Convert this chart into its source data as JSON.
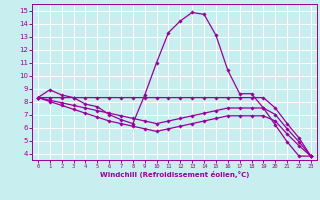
{
  "xlabel": "Windchill (Refroidissement éolien,°C)",
  "bg_color": "#c8eef0",
  "line_color": "#990099",
  "grid_color": "#ffffff",
  "xlim": [
    -0.5,
    23.5
  ],
  "ylim": [
    3.5,
    15.5
  ],
  "xticks": [
    0,
    1,
    2,
    3,
    4,
    5,
    6,
    7,
    8,
    9,
    10,
    11,
    12,
    13,
    14,
    15,
    16,
    17,
    18,
    19,
    20,
    21,
    22,
    23
  ],
  "yticks": [
    4,
    5,
    6,
    7,
    8,
    9,
    10,
    11,
    12,
    13,
    14,
    15
  ],
  "lines": [
    {
      "x": [
        0,
        1,
        2,
        3,
        4,
        5,
        6,
        7,
        8,
        9,
        10,
        11,
        12,
        13,
        14,
        15,
        16,
        17,
        18,
        19,
        20,
        21,
        22,
        23
      ],
      "y": [
        8.3,
        8.9,
        8.5,
        8.3,
        7.8,
        7.6,
        7.0,
        6.6,
        6.3,
        8.5,
        11.0,
        13.3,
        14.2,
        14.85,
        14.7,
        13.1,
        10.4,
        8.6,
        8.6,
        7.5,
        6.2,
        4.9,
        3.8,
        3.8
      ],
      "marker": "D",
      "markersize": 1.8
    },
    {
      "x": [
        0,
        1,
        2,
        3,
        4,
        5,
        6,
        7,
        8,
        9,
        10,
        11,
        12,
        13,
        14,
        15,
        16,
        17,
        18,
        19,
        20,
        21,
        22,
        23
      ],
      "y": [
        8.3,
        8.3,
        8.3,
        8.3,
        8.3,
        8.3,
        8.3,
        8.3,
        8.3,
        8.3,
        8.3,
        8.3,
        8.3,
        8.3,
        8.3,
        8.3,
        8.3,
        8.3,
        8.3,
        8.3,
        7.5,
        6.3,
        5.2,
        3.8
      ],
      "marker": "D",
      "markersize": 1.8
    },
    {
      "x": [
        0,
        1,
        2,
        3,
        4,
        5,
        6,
        7,
        8,
        9,
        10,
        11,
        12,
        13,
        14,
        15,
        16,
        17,
        18,
        19,
        20,
        21,
        22,
        23
      ],
      "y": [
        8.3,
        8.1,
        7.9,
        7.7,
        7.5,
        7.3,
        7.1,
        6.9,
        6.7,
        6.5,
        6.3,
        6.5,
        6.7,
        6.9,
        7.1,
        7.3,
        7.5,
        7.5,
        7.5,
        7.5,
        7.0,
        5.9,
        4.9,
        3.8
      ],
      "marker": "D",
      "markersize": 1.8
    },
    {
      "x": [
        0,
        1,
        2,
        3,
        4,
        5,
        6,
        7,
        8,
        9,
        10,
        11,
        12,
        13,
        14,
        15,
        16,
        17,
        18,
        19,
        20,
        21,
        22,
        23
      ],
      "y": [
        8.3,
        8.0,
        7.7,
        7.4,
        7.1,
        6.8,
        6.5,
        6.3,
        6.1,
        5.9,
        5.7,
        5.9,
        6.1,
        6.3,
        6.5,
        6.7,
        6.9,
        6.9,
        6.9,
        6.9,
        6.5,
        5.5,
        4.6,
        3.8
      ],
      "marker": "D",
      "markersize": 1.8
    }
  ]
}
